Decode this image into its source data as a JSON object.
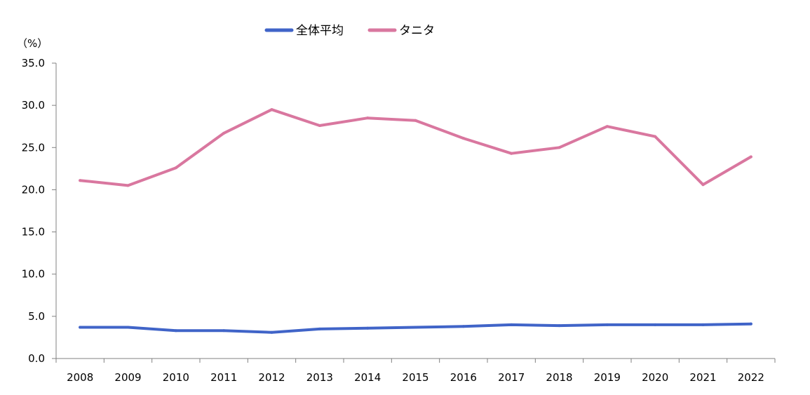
{
  "chart_data": {
    "type": "line",
    "title": "",
    "xlabel": "",
    "ylabel": "（%）",
    "categories": [
      "2008",
      "2009",
      "2010",
      "2011",
      "2012",
      "2013",
      "2014",
      "2015",
      "2016",
      "2017",
      "2018",
      "2019",
      "2020",
      "2021",
      "2022"
    ],
    "ylim": [
      0,
      35
    ],
    "yticks": [
      "0.0",
      "5.0",
      "10.0",
      "15.0",
      "20.0",
      "25.0",
      "30.0",
      "35.0"
    ],
    "grid": false,
    "legend_position": "top-center",
    "series": [
      {
        "name": "全体平均",
        "color": "#4064C8",
        "values": [
          3.7,
          3.7,
          3.3,
          3.3,
          3.1,
          3.5,
          3.6,
          3.7,
          3.8,
          4.0,
          3.9,
          4.0,
          4.0,
          4.0,
          4.1
        ]
      },
      {
        "name": "タニタ",
        "color": "#D9779F",
        "values": [
          21.1,
          20.5,
          22.6,
          26.7,
          29.5,
          27.6,
          28.5,
          28.2,
          26.1,
          24.3,
          25.0,
          27.5,
          26.3,
          20.6,
          23.9
        ]
      }
    ]
  }
}
